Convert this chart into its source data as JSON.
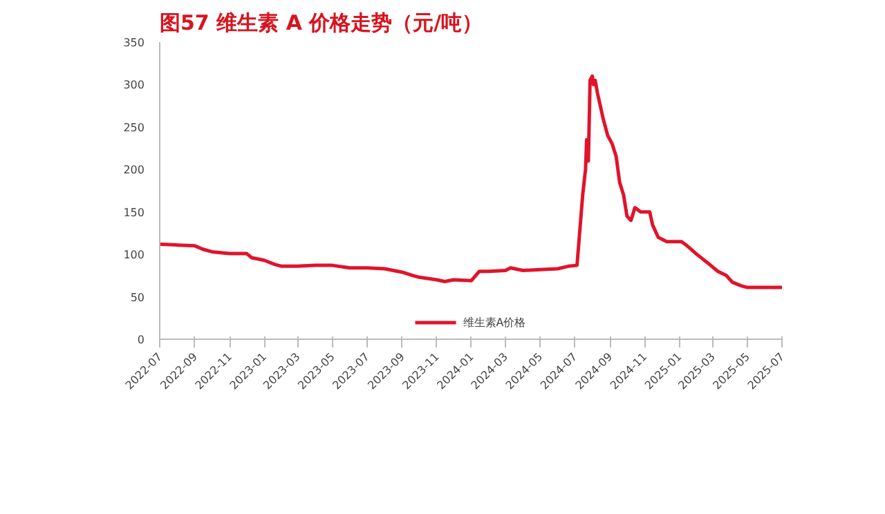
{
  "chart_data": {
    "type": "line",
    "title": "图57  维生素 A 价格走势（元/吨）",
    "x": [
      "2022-07-01",
      "2022-08-01",
      "2022-09-01",
      "2022-09-15",
      "2022-10-01",
      "2022-11-01",
      "2022-12-01",
      "2022-12-10",
      "2023-01-01",
      "2023-01-20",
      "2023-02-01",
      "2023-03-01",
      "2023-04-01",
      "2023-05-01",
      "2023-06-01",
      "2023-07-01",
      "2023-08-01",
      "2023-09-01",
      "2023-09-20",
      "2023-10-01",
      "2023-11-01",
      "2023-11-15",
      "2023-12-01",
      "2024-01-01",
      "2024-01-15",
      "2024-02-01",
      "2024-03-01",
      "2024-03-10",
      "2024-04-01",
      "2024-05-01",
      "2024-06-01",
      "2024-06-20",
      "2024-07-05",
      "2024-07-15",
      "2024-07-20",
      "2024-07-22",
      "2024-07-25",
      "2024-07-28",
      "2024-08-01",
      "2024-08-03",
      "2024-08-06",
      "2024-08-10",
      "2024-08-20",
      "2024-08-28",
      "2024-09-05",
      "2024-09-12",
      "2024-09-18",
      "2024-09-25",
      "2024-10-01",
      "2024-10-08",
      "2024-10-15",
      "2024-10-25",
      "2024-11-10",
      "2024-11-15",
      "2024-11-25",
      "2024-12-10",
      "2025-01-05",
      "2025-01-15",
      "2025-02-01",
      "2025-02-20",
      "2025-03-10",
      "2025-03-25",
      "2025-04-05",
      "2025-04-20",
      "2025-05-01",
      "2025-07-01"
    ],
    "series": [
      {
        "name": "维生素A价格",
        "color": "#e0142a",
        "values": [
          112,
          111,
          110,
          106,
          103,
          101,
          101,
          96,
          93,
          88,
          86,
          86,
          87,
          87,
          84,
          84,
          83,
          79,
          75,
          73,
          70,
          68,
          70,
          69,
          80,
          80,
          81,
          84,
          81,
          82,
          83,
          86,
          87,
          170,
          200,
          235,
          210,
          305,
          310,
          300,
          305,
          290,
          260,
          240,
          230,
          215,
          185,
          170,
          145,
          140,
          155,
          150,
          150,
          135,
          120,
          115,
          115,
          110,
          100,
          90,
          80,
          75,
          67,
          63,
          61,
          61
        ]
      }
    ],
    "xlim": [
      "2022-07-01",
      "2025-07-01"
    ],
    "xticks": [
      "2022-07",
      "2022-09",
      "2022-11",
      "2023-01",
      "2023-03",
      "2023-05",
      "2023-07",
      "2023-09",
      "2023-11",
      "2024-01",
      "2024-03",
      "2024-05",
      "2024-07",
      "2024-09",
      "2024-11",
      "2025-01",
      "2025-03",
      "2025-05",
      "2025-07"
    ],
    "ylim": [
      0,
      350
    ],
    "yticks": [
      0,
      50,
      100,
      150,
      200,
      250,
      300,
      350
    ],
    "grid": false,
    "legend": "bottom",
    "marker": "none",
    "line_style": "solid"
  }
}
